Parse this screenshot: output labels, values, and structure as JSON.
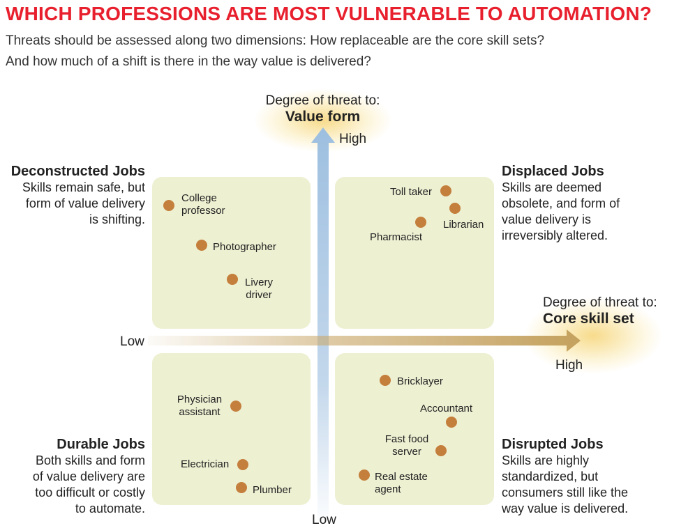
{
  "title": "WHICH PROFESSIONS ARE MOST VULNERABLE TO AUTOMATION?",
  "subtitle": {
    "line1": "Threats should be assessed along two dimensions: How replaceable are the core skill sets?",
    "line2": "And how much of a shift is there in the way value is delivered?"
  },
  "y_axis": {
    "caption": "Degree of threat to:",
    "name": "Value form",
    "high": "High",
    "low": "Low"
  },
  "x_axis": {
    "caption": "Degree of threat to:",
    "name": "Core skill set",
    "high": "High",
    "low": "Low"
  },
  "quadrants": {
    "deconstructed": {
      "heading": "Deconstructed Jobs",
      "l1": "Skills remain safe, but",
      "l2": "form of value delivery",
      "l3": "is shifting."
    },
    "displaced": {
      "heading": "Displaced Jobs",
      "l1": "Skills are deemed",
      "l2": "obsolete, and form of",
      "l3": "value delivery is",
      "l4": "irreversibly altered."
    },
    "durable": {
      "heading": "Durable Jobs",
      "l1": "Both skills and form",
      "l2": "of value delivery are",
      "l3": "too difficult or costly",
      "l4": "to automate."
    },
    "disrupted": {
      "heading": "Disrupted Jobs",
      "l1": "Skills are highly",
      "l2": "standardized, but",
      "l3": "consumers still like the",
      "l4": "way value is delivered."
    }
  },
  "jobs": {
    "college_professor": {
      "l1": "College",
      "l2": "professor"
    },
    "photographer": "Photographer",
    "livery_driver": {
      "l1": "Livery",
      "l2": "driver"
    },
    "toll_taker": "Toll taker",
    "librarian": "Librarian",
    "pharmacist": "Pharmacist",
    "physician_assistant": {
      "l1": "Physician",
      "l2": "assistant"
    },
    "electrician": "Electrician",
    "plumber": "Plumber",
    "bricklayer": "Bricklayer",
    "accountant": "Accountant",
    "fast_food_server": {
      "l1": "Fast food",
      "l2": "server"
    },
    "real_estate_agent": {
      "l1": "Real estate",
      "l2": "agent"
    }
  },
  "colors": {
    "title": "#e8202e",
    "quadrant_fill": "#eef0d2",
    "dot": "#c47f3c",
    "vertical_arrow": "#a9c6e3",
    "horizontal_arrow": "#c9a86b"
  }
}
